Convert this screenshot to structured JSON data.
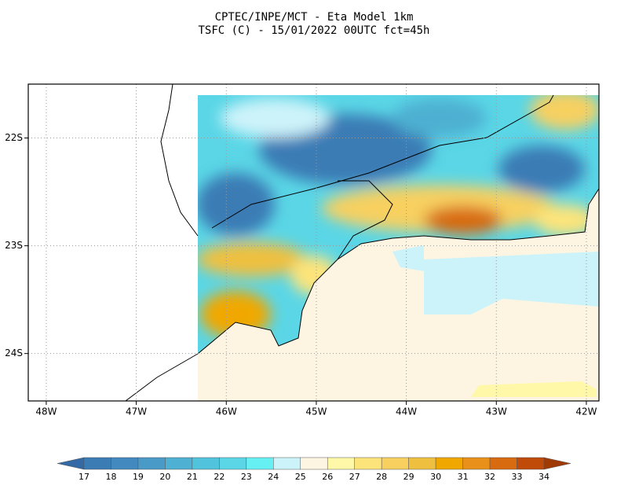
{
  "header": {
    "title": "CPTEC/INPE/MCT -  Eta Model 1km",
    "subtitle": "TSFC (C) - 15/01/2022 00UTC fct=45h"
  },
  "map": {
    "lon_range": [
      -48.2,
      -41.86
    ],
    "lat_range": [
      -24.44,
      -21.5
    ],
    "lon_ticks": [
      {
        "value": -48,
        "label": "48W"
      },
      {
        "value": -47,
        "label": "47W"
      },
      {
        "value": -46,
        "label": "46W"
      },
      {
        "value": -45,
        "label": "45W"
      },
      {
        "value": -44,
        "label": "44W"
      },
      {
        "value": -43,
        "label": "43W"
      },
      {
        "value": -42,
        "label": "42W"
      }
    ],
    "lat_ticks": [
      {
        "value": -22,
        "label": "22S"
      },
      {
        "value": -23,
        "label": "23S"
      },
      {
        "value": -24,
        "label": "24S"
      }
    ],
    "grid": true
  },
  "colorbar": {
    "levels": [
      17,
      18,
      19,
      20,
      21,
      22,
      23,
      24,
      25,
      26,
      27,
      28,
      29,
      30,
      31,
      32,
      33,
      34
    ],
    "colors": [
      "#336aa6",
      "#3b7cb5",
      "#4189bf",
      "#4a9ac8",
      "#4eb0d2",
      "#52c3dc",
      "#5ad6e6",
      "#66f0f4",
      "#cdf3fa",
      "#fdf5e2",
      "#fef8a8",
      "#fde47a",
      "#f7d060",
      "#efc040",
      "#f0a800",
      "#e8901a",
      "#d86a10",
      "#c04a08",
      "#a03a04"
    ]
  }
}
